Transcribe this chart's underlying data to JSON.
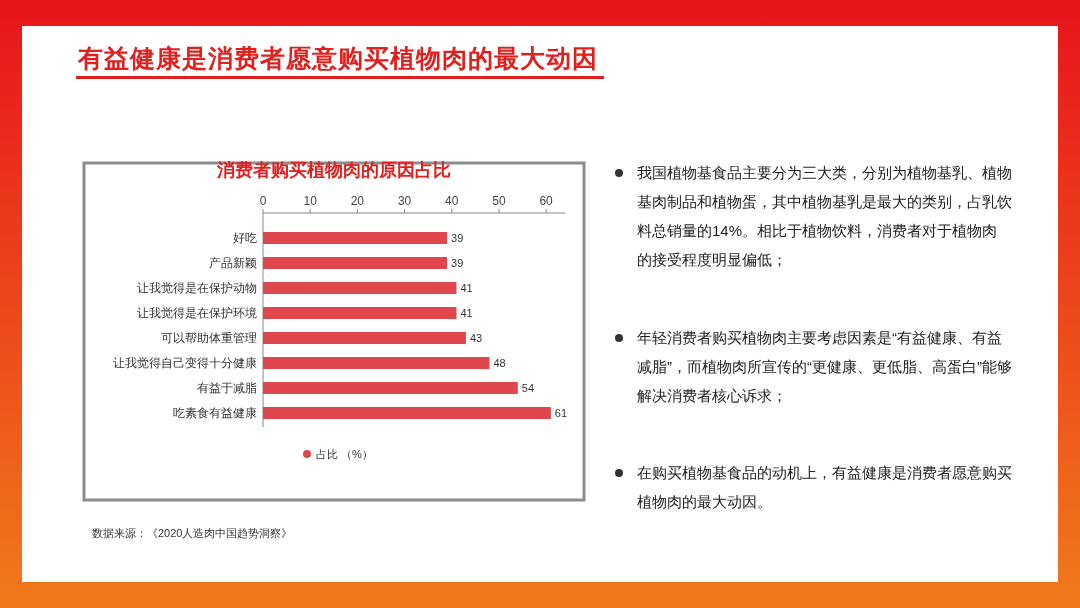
{
  "chart_data": {
    "type": "bar",
    "orientation": "horizontal",
    "title": "有益健康是消费者愿意购买植物肉的最大动因",
    "subtitle": "消费者购买植物肉的原因占比",
    "categories": [
      "好吃",
      "产品新颖",
      "让我觉得是在保护动物",
      "让我觉得是在保护环境",
      "可以帮助体重管理",
      "让我觉得自己变得十分健康",
      "有益于减脂",
      "吃素食有益健康"
    ],
    "series": [
      {
        "name": "占比 （%）",
        "color": "#e0474c",
        "values": [
          39,
          39,
          41,
          41,
          43,
          48,
          54,
          61
        ]
      }
    ],
    "xlim": [
      0,
      64
    ],
    "xticks": [
      0,
      10,
      20,
      30,
      40,
      50,
      60
    ],
    "data_labels": true,
    "legend": "bottom",
    "grid": false,
    "annotations": [
      "我国植物基食品主要分为三大类，分别为植物基乳、植物基肉制品和植物蛋，其中植物基乳是最大的类别，占乳饮料总销量的14%。相比于植物饮料，消费者对于植物肉的接受程度明显偏低；",
      "年轻消费者购买植物肉主要考虑因素是“有益健康、有益减脂”，而植物肉所宣传的“更健康、更低脂、高蛋白”能够解决消费者核心诉求；",
      "在购买植物基食品的动机上，有益健康是消费者愿意购买植物肉的最大动因。",
      "数据来源：《2020人造肉中国趋势洞察》"
    ]
  }
}
